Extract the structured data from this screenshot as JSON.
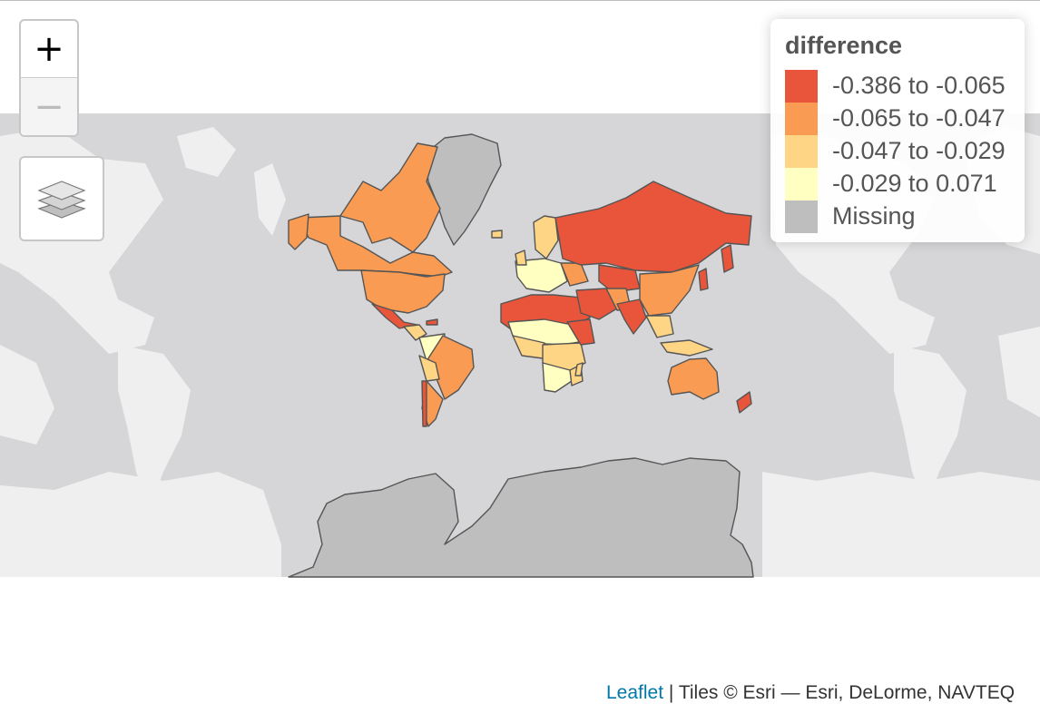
{
  "map": {
    "controls": {
      "zoom_in_label": "+",
      "zoom_out_label": "−"
    },
    "legend": {
      "title": "difference",
      "items": [
        {
          "label": "-0.386 to -0.065",
          "color": "#e8553a"
        },
        {
          "label": "-0.065 to -0.047",
          "color": "#f99b52"
        },
        {
          "label": "-0.047 to -0.029",
          "color": "#fdd585"
        },
        {
          "label": "-0.029 to 0.071",
          "color": "#ffffc2"
        },
        {
          "label": "Missing",
          "color": "#bebebe"
        }
      ]
    },
    "attribution": {
      "leaflet_link": "Leaflet",
      "separator": "|",
      "text": "Tiles © Esri — Esri, DeLorme, NAVTEQ"
    },
    "colors": {
      "ocean": "#d6d6d8",
      "basemap_land": "#efefef",
      "country_stroke": "#555555"
    }
  }
}
